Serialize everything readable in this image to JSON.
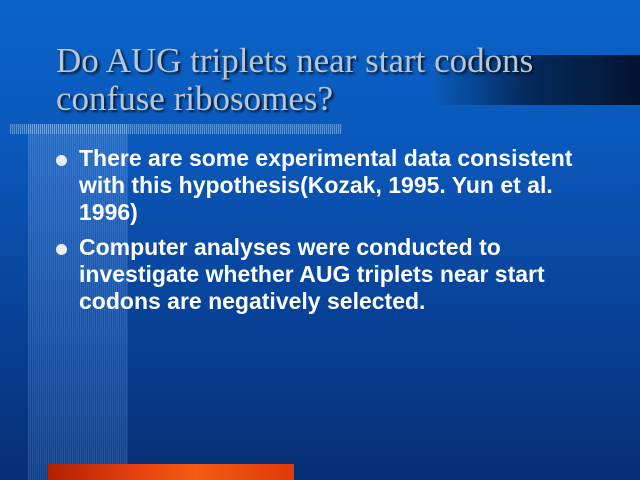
{
  "slide": {
    "title": "Do AUG triplets near start codons confuse ribosomes?",
    "bullets": [
      "There are some experimental data consistent with this hypothesis(Kozak, 1995. Yun et al. 1996)",
      "Computer analyses were conducted to investigate whether AUG triplets near start codons are negatively selected."
    ]
  },
  "colors": {
    "background_top": "#0b63c8",
    "background_bottom": "#062f74",
    "title_text": "#b8c6d6",
    "body_text": "#ffffff",
    "accent_bar": "#f85a12",
    "bullet_icon": "bullet-dot-icon"
  }
}
